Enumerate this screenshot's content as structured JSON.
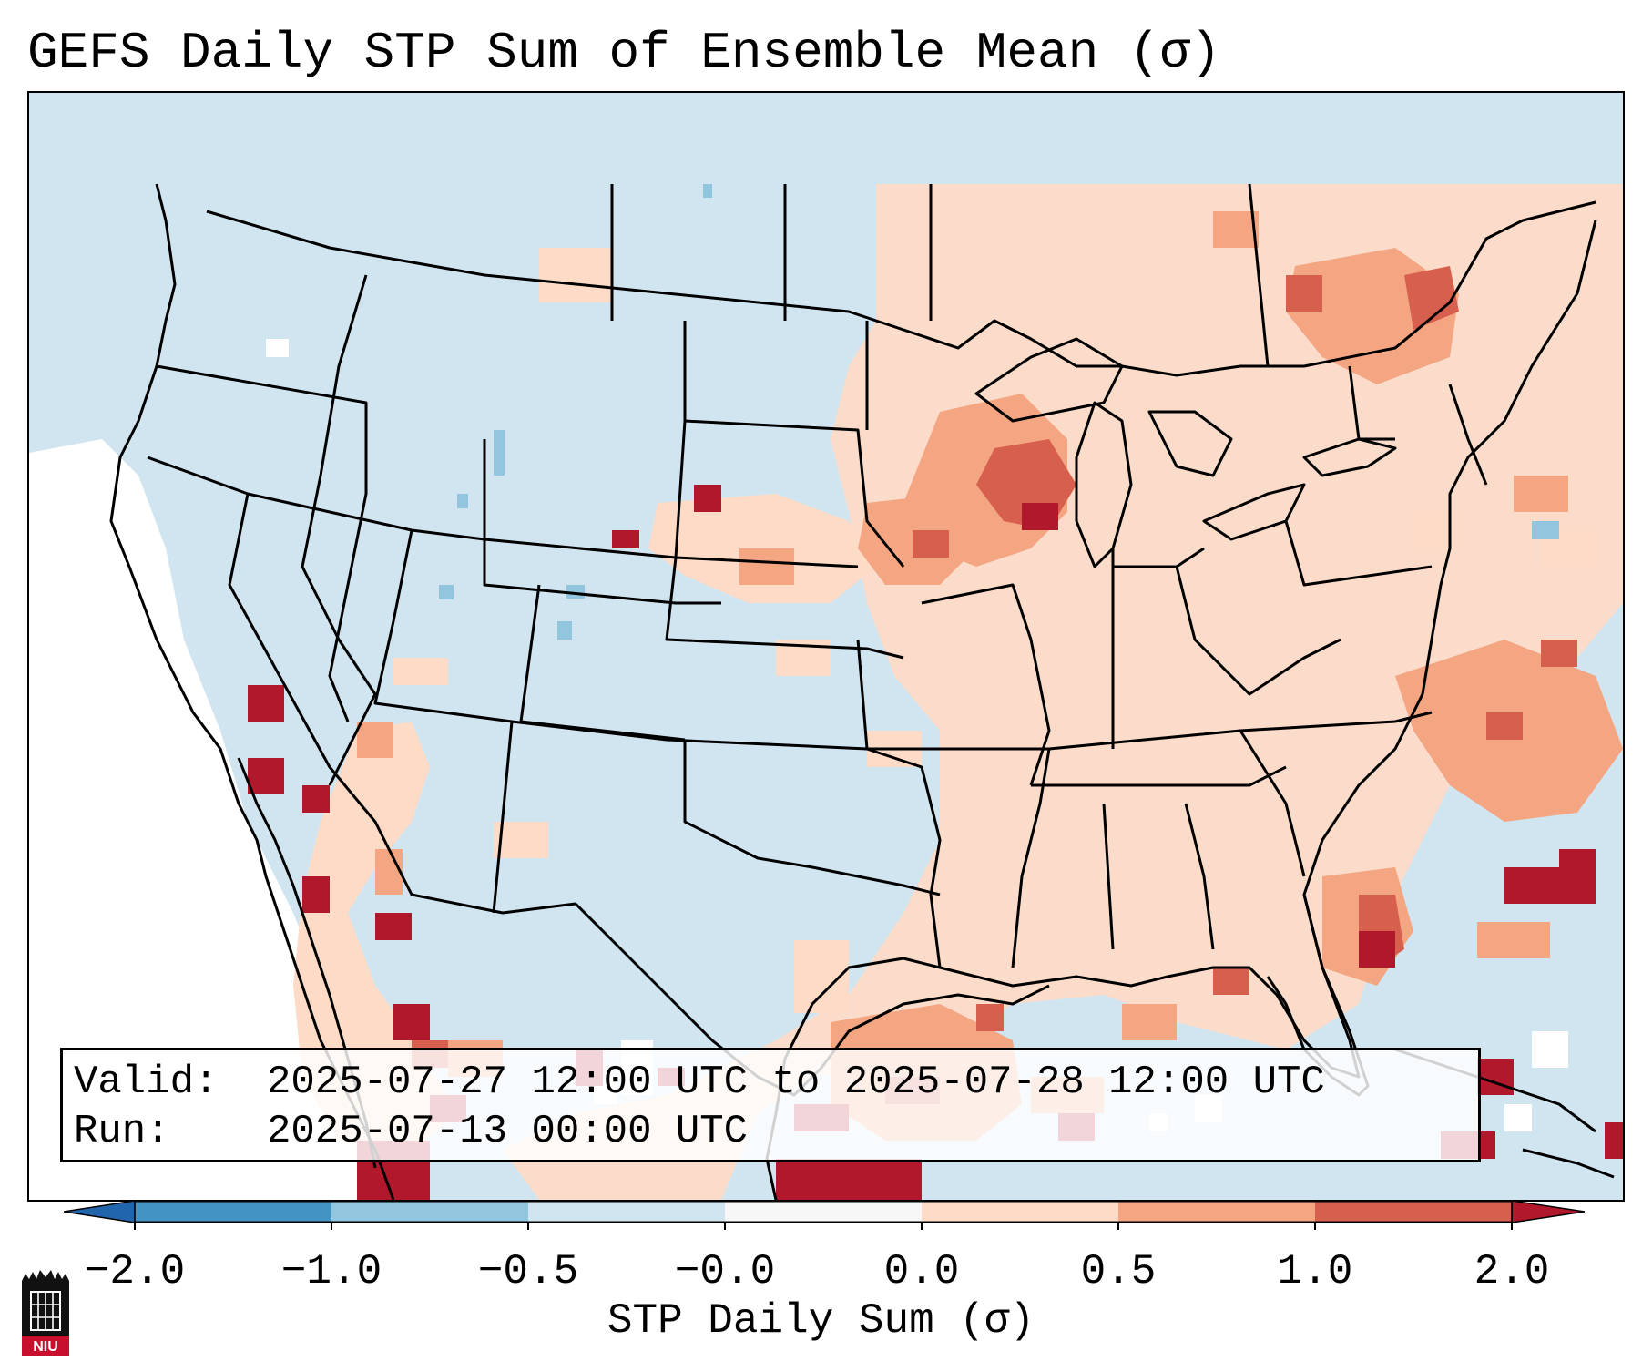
{
  "title": "GEFS Daily STP Sum of Ensemble Mean (σ)",
  "info": {
    "valid_label": "Valid:",
    "valid_value": "2025-07-27 12:00 UTC to 2025-07-28 12:00 UTC",
    "run_label": "Run:",
    "run_value": "2025-07-13 00:00 UTC"
  },
  "colorbar": {
    "label": "STP Daily Sum (σ)",
    "ticks": [
      "−2.0",
      "−1.0",
      "−0.5",
      "−0.0",
      "0.0",
      "0.5",
      "1.0",
      "2.0"
    ],
    "colors": [
      "#2166ac",
      "#4393c3",
      "#92c5de",
      "#d1e5f0",
      "#f7f7f7",
      "#fddbc7",
      "#f4a582",
      "#d6604d",
      "#b2182b"
    ]
  },
  "legend_colors": {
    "below": "#d1e5f0",
    "neutral": "#ffffff",
    "low": "#fddbc7",
    "mid": "#f4a582",
    "high": "#d6604d",
    "extreme": "#b2182b",
    "negative": "#92c5de"
  },
  "logo": {
    "text": "NIU"
  }
}
